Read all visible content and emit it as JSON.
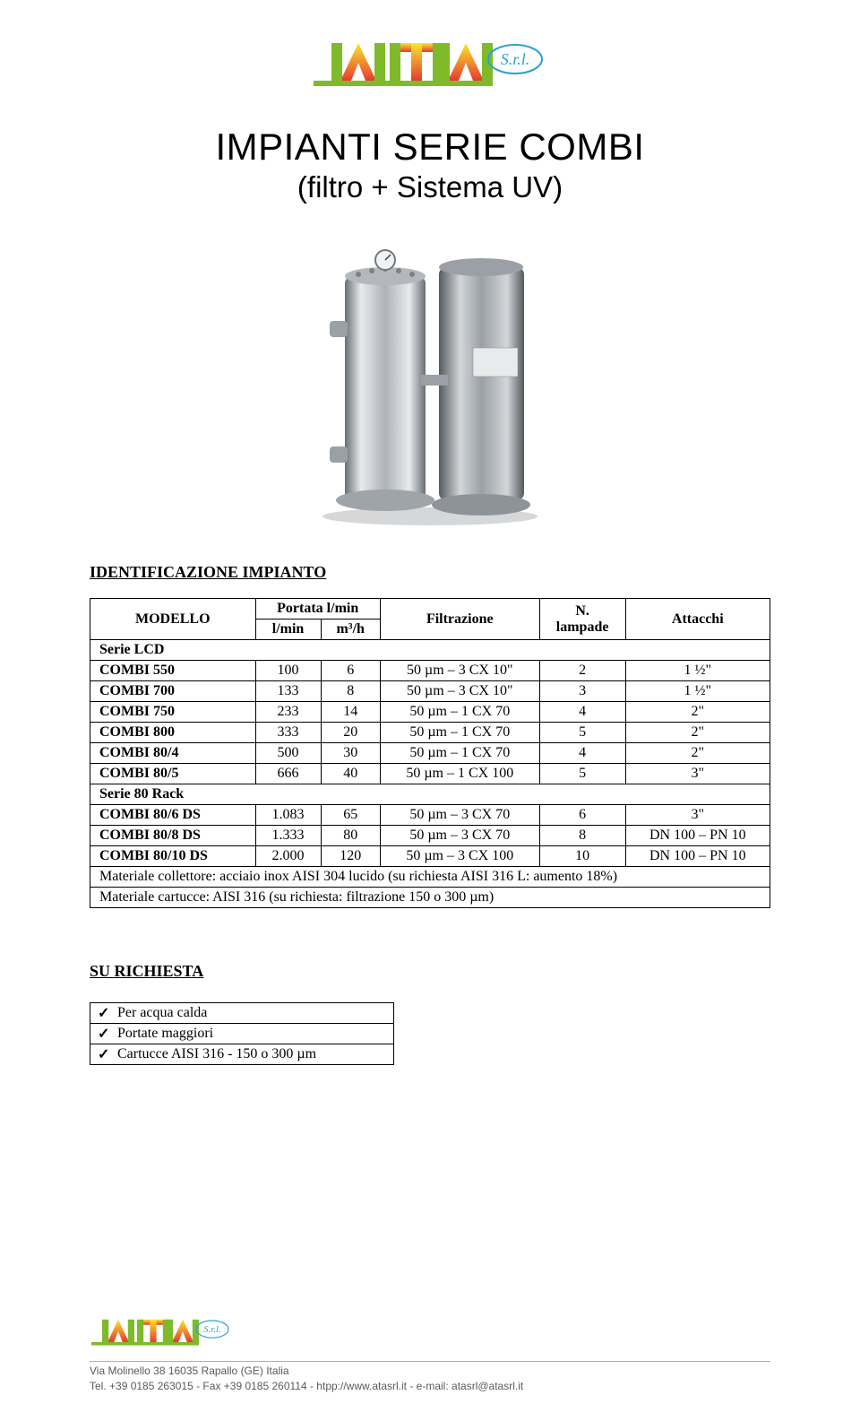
{
  "logo": {
    "brand_text": "S.r.l.",
    "bar_colors": [
      "#7fba2a",
      "#7fba2a",
      "#7fba2a"
    ],
    "gradient_top": "#f7e92f",
    "gradient_bottom": "#e63a2f",
    "underline_color": "#7fba2a",
    "text_color": "#2aa0d8"
  },
  "title_block": {
    "title": "IMPIANTI SERIE COMBI",
    "subtitle": "(filtro + Sistema UV)"
  },
  "product_image": {
    "steel_light": "#d9dadd",
    "steel_mid": "#a9adb2",
    "steel_dark": "#5e6368",
    "shadow": "#c9cbce"
  },
  "section1_heading": "IDENTIFICAZIONE IMPIANTO",
  "table": {
    "headers": {
      "modello": "MODELLO",
      "portata": "Portata l/min",
      "lmin": "l/min",
      "m3h": "m³/h",
      "filtrazione": "Filtrazione",
      "nlampade": "N.\nlampade",
      "attacchi": "Attacchi"
    },
    "group1": "Serie LCD",
    "group2": "Serie 80 Rack",
    "rows1": [
      {
        "m": "COMBI 550",
        "l": "100",
        "m3": "6",
        "f": "50 µm – 3 CX 10\"",
        "n": "2",
        "a": "1 ½\""
      },
      {
        "m": "COMBI 700",
        "l": "133",
        "m3": "8",
        "f": "50 µm – 3 CX 10\"",
        "n": "3",
        "a": "1 ½\""
      },
      {
        "m": "COMBI 750",
        "l": "233",
        "m3": "14",
        "f": "50 µm – 1 CX 70",
        "n": "4",
        "a": "2\""
      },
      {
        "m": "COMBI 800",
        "l": "333",
        "m3": "20",
        "f": "50 µm – 1 CX 70",
        "n": "5",
        "a": "2\""
      },
      {
        "m": "COMBI 80/4",
        "l": "500",
        "m3": "30",
        "f": "50 µm – 1 CX 70",
        "n": "4",
        "a": "2\""
      },
      {
        "m": "COMBI 80/5",
        "l": "666",
        "m3": "40",
        "f": "50 µm – 1 CX 100",
        "n": "5",
        "a": "3\""
      }
    ],
    "rows2": [
      {
        "m": "COMBI 80/6 DS",
        "l": "1.083",
        "m3": "65",
        "f": "50 µm – 3 CX 70",
        "n": "6",
        "a": "3\""
      },
      {
        "m": "COMBI 80/8 DS",
        "l": "1.333",
        "m3": "80",
        "f": "50 µm – 3 CX 70",
        "n": "8",
        "a": "DN 100 – PN 10"
      },
      {
        "m": "COMBI 80/10 DS",
        "l": "2.000",
        "m3": "120",
        "f": "50 µm – 3 CX 100",
        "n": "10",
        "a": "DN 100 – PN 10"
      }
    ],
    "note1": "Materiale collettore: acciaio inox AISI 304 lucido (su richiesta AISI 316 L: aumento 18%)",
    "note2": "Materiale cartucce: AISI 316 (su richiesta: filtrazione 150 o 300 µm)"
  },
  "section2_heading": "SU RICHIESTA",
  "checklist": [
    "Per acqua calda",
    "Portate maggiori",
    "Cartucce AISI 316 - 150 o 300 µm"
  ],
  "footer": {
    "line1": "Via Molinello 38    16035 Rapallo (GE)    Italia",
    "line2": "Tel. +39 0185 263015    -    Fax +39 0185 260114    -    htpp://www.atasrl.it    -    e-mail: atasrl@atasrl.it"
  }
}
